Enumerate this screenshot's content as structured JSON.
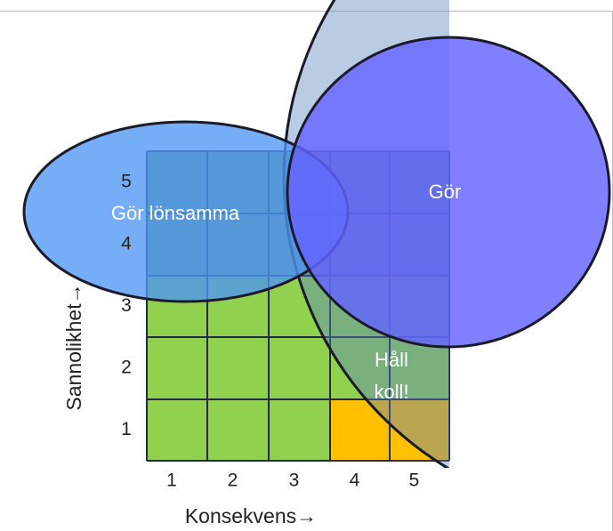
{
  "axes": {
    "y": "Sannolikhet→",
    "x": "Konsekvens→"
  },
  "y_labels": [
    "1",
    "2",
    "3",
    "4",
    "5"
  ],
  "x_labels": [
    "1",
    "2",
    "3",
    "4",
    "5"
  ],
  "regions": {
    "left": "Gör lönsamma",
    "right": "Gör",
    "middle": [
      "Håll",
      "koll!"
    ]
  }
}
